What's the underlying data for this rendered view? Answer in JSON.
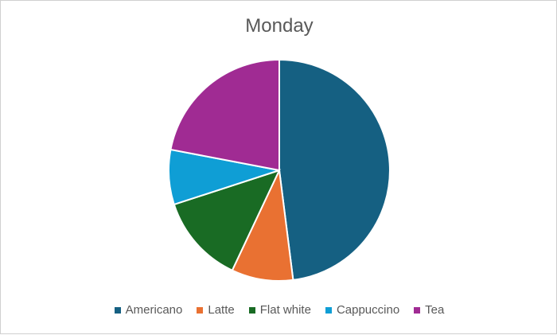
{
  "chart_data": {
    "type": "pie",
    "title": "Monday",
    "categories": [
      "Americano",
      "Latte",
      "Flat white",
      "Cappuccino",
      "Tea"
    ],
    "values": [
      48,
      9,
      13,
      8,
      22
    ],
    "colors": [
      "#156082",
      "#E97132",
      "#196B24",
      "#0F9ED5",
      "#A02B93"
    ],
    "legend_position": "bottom",
    "start_angle_deg": 0,
    "direction": "clockwise"
  }
}
